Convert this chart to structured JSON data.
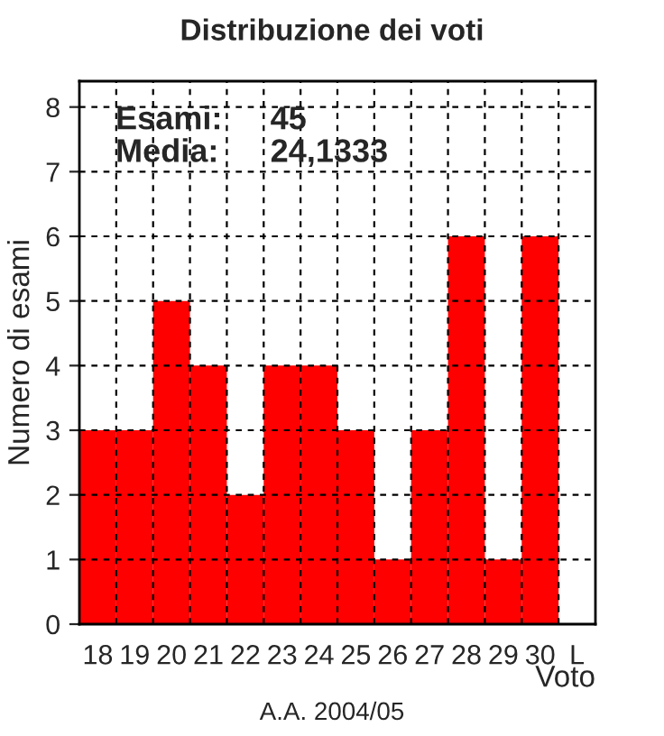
{
  "chart_data": {
    "type": "bar",
    "title": "Distribuzione dei voti",
    "xlabel": "Voto",
    "ylabel": "Numero di esami",
    "categories": [
      "18",
      "19",
      "20",
      "21",
      "22",
      "23",
      "24",
      "25",
      "26",
      "27",
      "28",
      "29",
      "30",
      "L"
    ],
    "values": [
      3,
      3,
      5,
      4,
      2,
      4,
      4,
      3,
      1,
      3,
      6,
      1,
      6,
      0
    ],
    "color": "#ff0000",
    "ylim": [
      0,
      8.4
    ],
    "yticks": [
      0,
      1,
      2,
      3,
      4,
      5,
      6,
      7,
      8
    ],
    "grid": true,
    "line_style": "dashed",
    "annotations": [
      "Esami:",
      "45",
      "Media:",
      "24,1333",
      "A.A. 2004/05"
    ]
  }
}
